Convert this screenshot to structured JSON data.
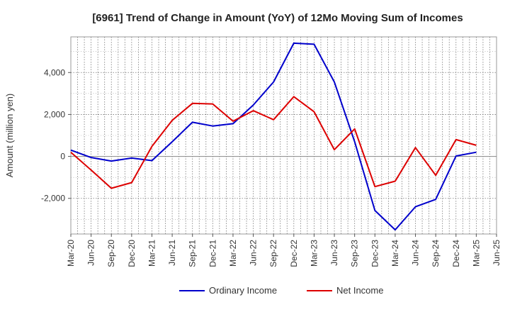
{
  "chart_data": {
    "type": "line",
    "title": "[6961]  Trend of Change in Amount (YoY) of 12Mo Moving Sum of Incomes",
    "xlabel": "",
    "ylabel": "Amount (million yen)",
    "x": [
      "Mar-20",
      "Jun-20",
      "Sep-20",
      "Dec-20",
      "Mar-21",
      "Jun-21",
      "Sep-21",
      "Dec-21",
      "Mar-22",
      "Jun-22",
      "Sep-22",
      "Dec-22",
      "Mar-23",
      "Jun-23",
      "Sep-23",
      "Dec-23",
      "Mar-24",
      "Jun-24",
      "Sep-24",
      "Dec-24",
      "Mar-25",
      "Jun-25"
    ],
    "yticks": [
      -2000,
      0,
      2000,
      4000
    ],
    "ytick_labels": [
      "-2,000",
      "0",
      "2,000",
      "4,000"
    ],
    "ylim": [
      -3700,
      5700
    ],
    "grid": true,
    "legend_position": "bottom",
    "series": [
      {
        "name": "Ordinary Income",
        "color": "#0000cc",
        "values": [
          300,
          -50,
          -220,
          -80,
          -200,
          700,
          1630,
          1450,
          1560,
          2450,
          3550,
          5400,
          5350,
          3550,
          700,
          -2580,
          -3500,
          -2400,
          -2050,
          20,
          200,
          null
        ]
      },
      {
        "name": "Net Income",
        "color": "#dd0000",
        "values": [
          200,
          -650,
          -1520,
          -1250,
          480,
          1720,
          2530,
          2500,
          1680,
          2180,
          1750,
          2850,
          2130,
          320,
          1310,
          -1440,
          -1180,
          420,
          -900,
          800,
          530,
          null
        ]
      }
    ]
  }
}
